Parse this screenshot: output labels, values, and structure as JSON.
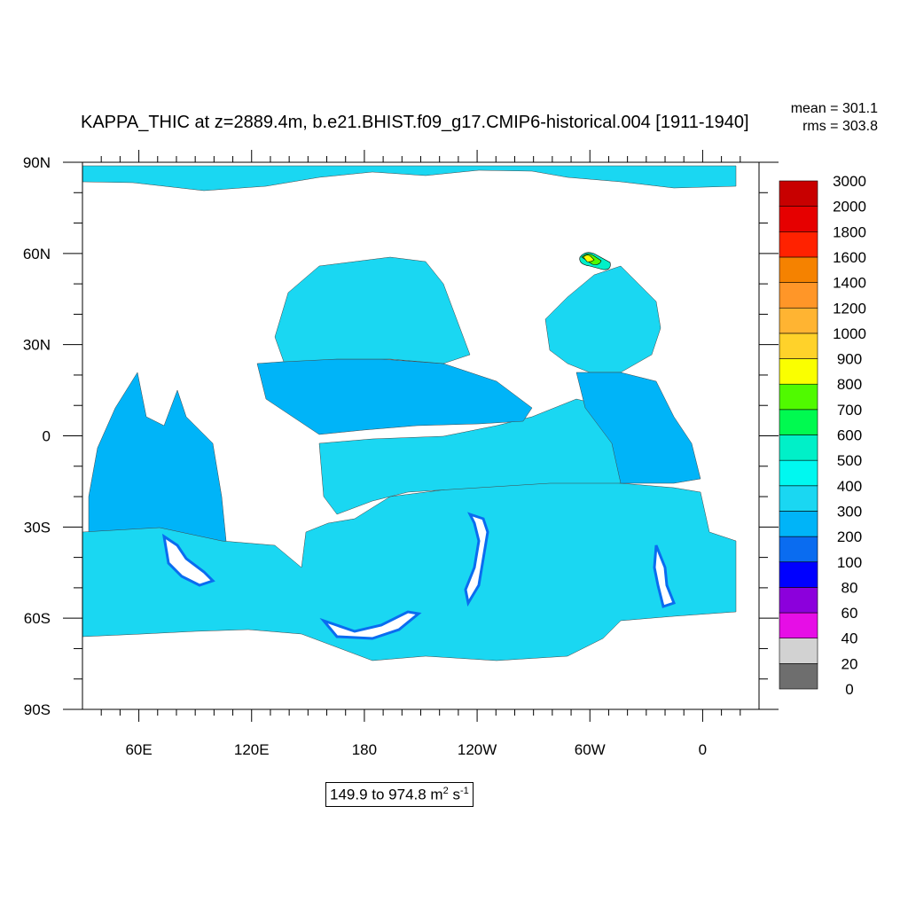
{
  "chart_data": {
    "type": "heatmap",
    "title": "KAPPA_THIC at z=2889.4m, b.e21.BHIST.f09_g17.CMIP6-historical.004 [1911-1940]",
    "stats": {
      "mean": "mean = 301.1",
      "rms": "rms = 303.8"
    },
    "x_ticks": [
      "60E",
      "120E",
      "180",
      "120W",
      "60W",
      "0"
    ],
    "y_ticks": [
      "90N",
      "60N",
      "30N",
      "0",
      "30S",
      "60S",
      "90S"
    ],
    "colorbar": {
      "levels": [
        "0",
        "20",
        "40",
        "60",
        "80",
        "100",
        "200",
        "300",
        "400",
        "500",
        "600",
        "700",
        "800",
        "900",
        "1000",
        "1200",
        "1400",
        "1600",
        "1800",
        "2000",
        "3000"
      ],
      "colors": [
        "#6e6e6e",
        "#d2d2d2",
        "#e60ee6",
        "#8c00dc",
        "#0000ff",
        "#0a6cf0",
        "#00b4f8",
        "#1ad7f2",
        "#00f8f0",
        "#00f0c8",
        "#00fa50",
        "#50fa00",
        "#faff00",
        "#ffd22a",
        "#ffb432",
        "#ff9628",
        "#f58200",
        "#ff2200",
        "#e60000",
        "#c80000"
      ]
    },
    "range_label": {
      "prefix": "149.9 to 974.8 m",
      "sup1": "2",
      "mid": " s",
      "sup2": "-1"
    },
    "value_min": 149.9,
    "value_max": 974.8,
    "units": "m2 s-1"
  }
}
